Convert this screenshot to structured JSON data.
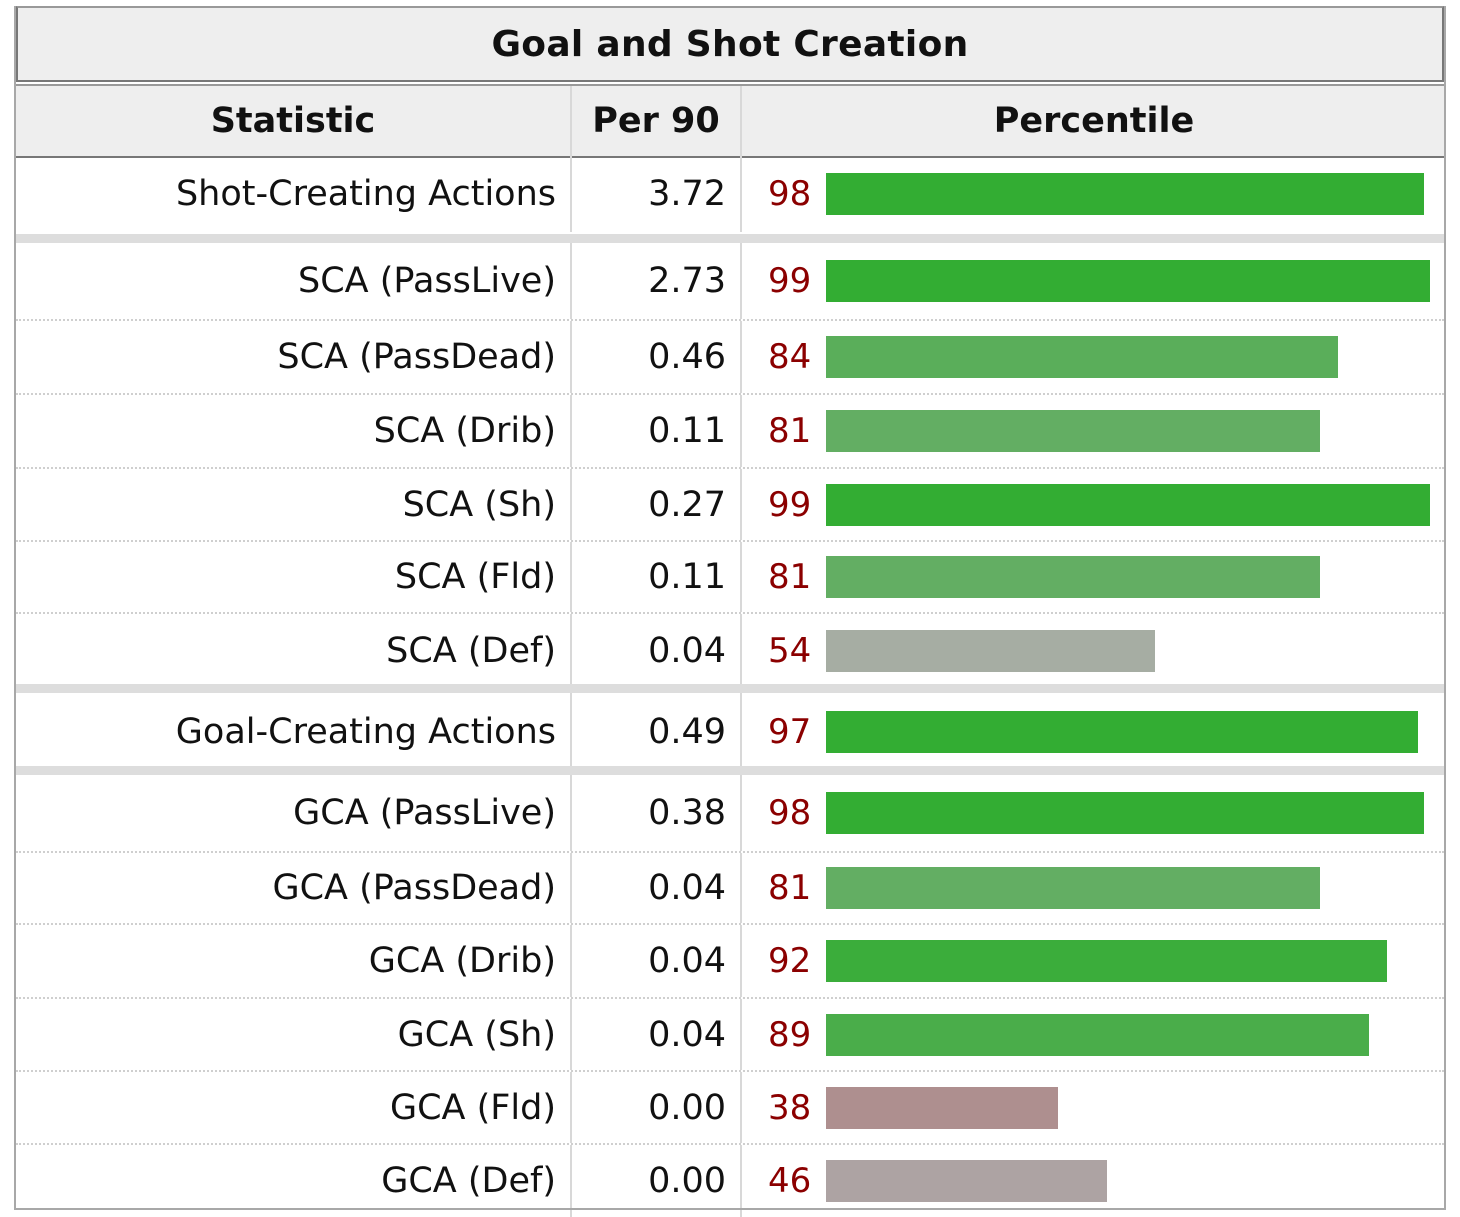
{
  "table": {
    "caption": "Goal and Shot Creation",
    "headers": {
      "statistic": "Statistic",
      "per90": "Per 90",
      "percentile": "Percentile"
    },
    "groups": [
      {
        "rows": [
          {
            "statistic": "Shot-Creating Actions",
            "per90": "3.72",
            "percentile": "98",
            "pct_value": 98,
            "bar_color": "#33ad33"
          }
        ]
      },
      {
        "rows": [
          {
            "statistic": "SCA (PassLive)",
            "per90": "2.73",
            "percentile": "99",
            "pct_value": 99,
            "bar_color": "#33ad33"
          },
          {
            "statistic": "SCA (PassDead)",
            "per90": "0.46",
            "percentile": "84",
            "pct_value": 84,
            "bar_color": "#5aae5a"
          },
          {
            "statistic": "SCA (Drib)",
            "per90": "0.11",
            "percentile": "81",
            "pct_value": 81,
            "bar_color": "#63ae63"
          },
          {
            "statistic": "SCA (Sh)",
            "per90": "0.27",
            "percentile": "99",
            "pct_value": 99,
            "bar_color": "#33ad33"
          },
          {
            "statistic": "SCA (Fld)",
            "per90": "0.11",
            "percentile": "81",
            "pct_value": 81,
            "bar_color": "#63ae63"
          },
          {
            "statistic": "SCA (Def)",
            "per90": "0.04",
            "percentile": "54",
            "pct_value": 54,
            "bar_color": "#a6ada3"
          }
        ]
      },
      {
        "rows": [
          {
            "statistic": "Goal-Creating Actions",
            "per90": "0.49",
            "percentile": "97",
            "pct_value": 97,
            "bar_color": "#33ad33"
          }
        ]
      },
      {
        "rows": [
          {
            "statistic": "GCA (PassLive)",
            "per90": "0.38",
            "percentile": "98",
            "pct_value": 98,
            "bar_color": "#33ad33"
          },
          {
            "statistic": "GCA (PassDead)",
            "per90": "0.04",
            "percentile": "81",
            "pct_value": 81,
            "bar_color": "#63ae63"
          },
          {
            "statistic": "GCA (Drib)",
            "per90": "0.04",
            "percentile": "92",
            "pct_value": 92,
            "bar_color": "#3bad3b"
          },
          {
            "statistic": "GCA (Sh)",
            "per90": "0.04",
            "percentile": "89",
            "pct_value": 89,
            "bar_color": "#4aad4a"
          },
          {
            "statistic": "GCA (Fld)",
            "per90": "0.00",
            "percentile": "38",
            "pct_value": 38,
            "bar_color": "#ae8f8f"
          },
          {
            "statistic": "GCA (Def)",
            "per90": "0.00",
            "percentile": "46",
            "pct_value": 46,
            "bar_color": "#ada3a3"
          }
        ]
      }
    ]
  }
}
